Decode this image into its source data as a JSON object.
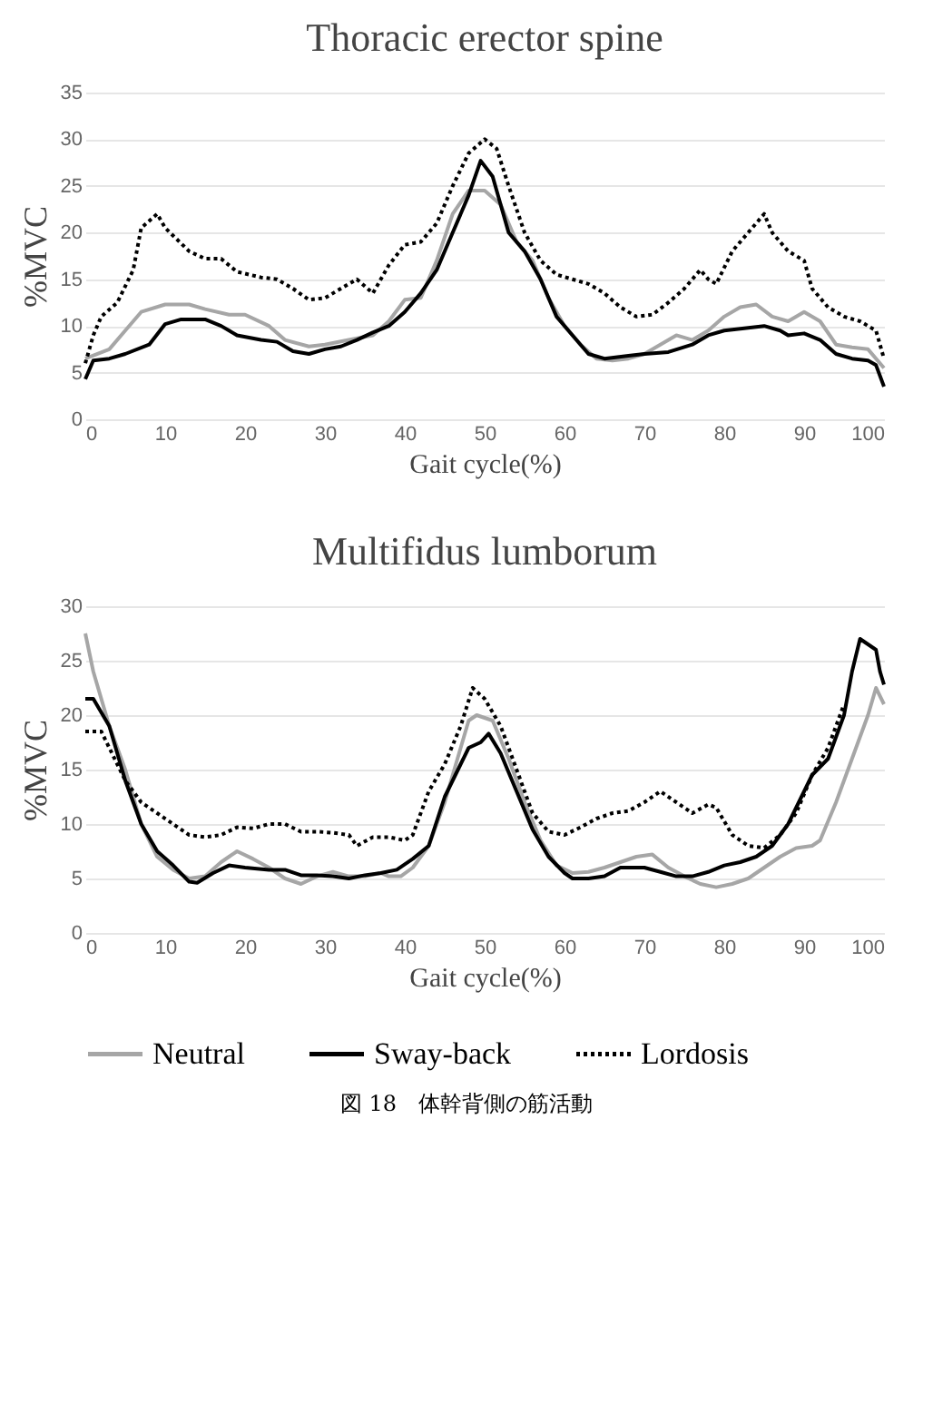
{
  "chart_data": [
    {
      "type": "line",
      "title": "Thoracic erector spine",
      "xlabel": "Gait cycle(%)",
      "ylabel": "%MVC",
      "xlim": [
        0,
        100
      ],
      "xticks": [
        0,
        10,
        20,
        30,
        40,
        50,
        60,
        70,
        80,
        90,
        100
      ],
      "ylim": [
        0,
        35
      ],
      "yticks": [
        0,
        5,
        10,
        15,
        20,
        25,
        30,
        35
      ],
      "grid": "y",
      "legend": "bottom",
      "series": [
        {
          "name": "Neutral",
          "color": "#a6a6a6",
          "line_style": "solid",
          "x": [
            0,
            3,
            5,
            7,
            10,
            13,
            15,
            18,
            20,
            23,
            25,
            28,
            30,
            33,
            36,
            38,
            40,
            42,
            44,
            46,
            48,
            50,
            52,
            54,
            56,
            58,
            60,
            62,
            64,
            66,
            68,
            70,
            72,
            74,
            76,
            78,
            80,
            82,
            84,
            86,
            88,
            90,
            92,
            94,
            96,
            98,
            100
          ],
          "values": [
            6.5,
            7.5,
            9.5,
            11.5,
            12.3,
            12.3,
            11.8,
            11.2,
            11.2,
            10,
            8.5,
            7.8,
            8,
            8.5,
            9,
            10.5,
            12.8,
            13,
            17,
            22,
            24.5,
            24.5,
            23,
            19,
            17,
            13,
            10,
            8,
            6.5,
            6.3,
            6.5,
            7,
            8,
            9,
            8.5,
            9.5,
            11,
            12,
            12.3,
            11,
            10.5,
            11.5,
            10.5,
            8,
            7.7,
            7.5,
            5.5
          ]
        },
        {
          "name": "Sway-back",
          "color": "#000000",
          "line_style": "solid",
          "x": [
            0,
            1,
            3,
            5,
            8,
            10,
            12,
            15,
            17,
            19,
            22,
            24,
            26,
            28,
            30,
            32,
            34,
            36,
            38,
            40,
            42,
            44,
            46,
            48,
            49.5,
            51,
            53,
            55,
            57,
            59,
            61,
            63,
            65,
            68,
            70,
            73,
            76,
            78,
            80,
            83,
            85,
            87,
            88,
            90,
            92,
            94,
            96,
            98,
            99,
            100
          ],
          "values": [
            4.3,
            6.3,
            6.5,
            7,
            8,
            10.2,
            10.7,
            10.7,
            10,
            9,
            8.5,
            8.3,
            7.3,
            7,
            7.5,
            7.8,
            8.5,
            9.3,
            10,
            11.5,
            13.5,
            16,
            20,
            24,
            27.7,
            26,
            20,
            18,
            15,
            11,
            9,
            7,
            6.5,
            6.8,
            7,
            7.2,
            8,
            9,
            9.5,
            9.8,
            10,
            9.5,
            9,
            9.2,
            8.5,
            7,
            6.5,
            6.3,
            5.8,
            3.5
          ]
        },
        {
          "name": "Lordosis",
          "color": "#000000",
          "line_style": "dotted",
          "x": [
            0,
            1,
            2,
            4,
            6,
            7,
            9,
            10,
            13,
            15,
            17,
            19,
            22,
            24,
            26,
            28,
            30,
            32,
            34,
            36,
            38,
            40,
            42,
            44,
            46,
            48,
            50,
            51.5,
            53,
            55,
            57,
            59,
            61,
            63,
            65,
            67,
            69,
            71,
            73,
            75,
            77,
            78,
            79,
            81,
            83,
            85,
            86,
            88,
            89,
            90,
            91,
            93,
            95,
            97,
            99,
            100
          ],
          "values": [
            6,
            9,
            11,
            12.5,
            16,
            20.5,
            22,
            20.5,
            18,
            17.2,
            17.2,
            15.8,
            15.2,
            15,
            14,
            12.8,
            13,
            14,
            15,
            13.5,
            16.5,
            18.7,
            19,
            21,
            25,
            28.5,
            30,
            29,
            25,
            20,
            17,
            15.5,
            15,
            14.5,
            13.5,
            12,
            11,
            11.2,
            12.5,
            14,
            16,
            15,
            14.5,
            18,
            20,
            22,
            20,
            18,
            17.5,
            17,
            14,
            12,
            11,
            10.5,
            9.5,
            6.5
          ]
        }
      ]
    },
    {
      "type": "line",
      "title": "Multifidus lumborum",
      "xlabel": "Gait cycle(%)",
      "ylabel": "%MVC",
      "xlim": [
        0,
        100
      ],
      "xticks": [
        0,
        10,
        20,
        30,
        40,
        50,
        60,
        70,
        80,
        90,
        100
      ],
      "ylim": [
        0,
        30
      ],
      "yticks": [
        0,
        5,
        10,
        15,
        20,
        25,
        30
      ],
      "grid": "y",
      "legend": "bottom",
      "annotations": [
        "図 18　体幹背側の筋活動"
      ],
      "series": [
        {
          "name": "Neutral",
          "color": "#a6a6a6",
          "line_style": "solid",
          "x": [
            0,
            1,
            3,
            5,
            7,
            9,
            11,
            13,
            15,
            17,
            19,
            21,
            23,
            25,
            27,
            29,
            31,
            33,
            35,
            37,
            38,
            39.5,
            41,
            43,
            45,
            47,
            48,
            49,
            51,
            53,
            55,
            57,
            59,
            61,
            63,
            65,
            67,
            69,
            71,
            73,
            75,
            77,
            79,
            81,
            83,
            85,
            87,
            89,
            91,
            92,
            94,
            96,
            98,
            99,
            100
          ],
          "values": [
            27.5,
            24,
            19,
            15,
            10,
            7,
            5.8,
            5,
            5.2,
            6.5,
            7.5,
            6.8,
            6,
            5,
            4.5,
            5.2,
            5.6,
            5.2,
            5.2,
            5.5,
            5.2,
            5.2,
            6,
            8,
            12,
            17,
            19.5,
            20,
            19.5,
            16,
            12,
            8.5,
            6.2,
            5.5,
            5.6,
            6,
            6.5,
            7,
            7.2,
            6,
            5.2,
            4.5,
            4.2,
            4.5,
            5,
            6,
            7,
            7.8,
            8,
            8.5,
            12,
            16,
            20,
            22.5,
            21
          ]
        },
        {
          "name": "Sway-back",
          "color": "#000000",
          "line_style": "solid",
          "x": [
            0,
            1,
            3,
            5,
            7,
            9,
            11,
            13,
            14,
            16,
            18,
            20,
            23,
            25,
            27,
            29,
            31,
            33,
            35,
            37,
            39,
            41,
            43,
            45,
            47,
            48,
            49.5,
            50.5,
            52,
            54,
            56,
            58,
            60,
            61,
            63,
            65,
            67,
            70,
            72,
            74,
            76,
            78,
            80,
            82,
            84,
            86,
            88,
            90,
            91,
            93,
            95,
            96,
            97,
            98,
            99,
            99.5,
            100
          ],
          "values": [
            21.5,
            21.5,
            19,
            14,
            10,
            7.5,
            6.2,
            4.7,
            4.6,
            5.5,
            6.2,
            6,
            5.8,
            5.8,
            5.3,
            5.3,
            5.2,
            5,
            5.3,
            5.5,
            5.8,
            6.8,
            8,
            12.5,
            15.5,
            17,
            17.5,
            18.3,
            16.5,
            13,
            9.5,
            7,
            5.5,
            5,
            5,
            5.2,
            6,
            6,
            5.6,
            5.2,
            5.2,
            5.6,
            6.2,
            6.5,
            7,
            8,
            10,
            13,
            14.5,
            16,
            20,
            24,
            27,
            26.5,
            26,
            24,
            22.8
          ]
        },
        {
          "name": "Lordosis",
          "color": "#000000",
          "line_style": "dotted",
          "x": [
            0,
            2,
            3,
            5,
            7,
            9,
            11,
            13,
            15,
            17,
            19,
            21,
            23,
            25,
            27,
            29,
            31,
            33,
            34,
            36,
            38,
            40,
            41,
            43,
            45,
            47,
            48.5,
            50,
            52,
            54,
            56,
            58,
            60,
            62,
            64,
            66,
            68,
            70,
            72,
            74,
            76,
            78,
            79,
            81,
            83,
            85,
            87,
            89,
            91,
            93,
            95
          ],
          "values": [
            18.5,
            18.5,
            17,
            14,
            12,
            11,
            10,
            9,
            8.8,
            9,
            9.7,
            9.6,
            10,
            10,
            9.3,
            9.3,
            9.2,
            9,
            8,
            8.8,
            8.8,
            8.5,
            9,
            13,
            15.5,
            19,
            22.5,
            21.5,
            19,
            15,
            11,
            9.3,
            9,
            9.7,
            10.5,
            11,
            11.2,
            12,
            13,
            12,
            11,
            11.8,
            11.5,
            9,
            8,
            7.8,
            9,
            11,
            14.5,
            17,
            21
          ]
        }
      ]
    }
  ]
}
